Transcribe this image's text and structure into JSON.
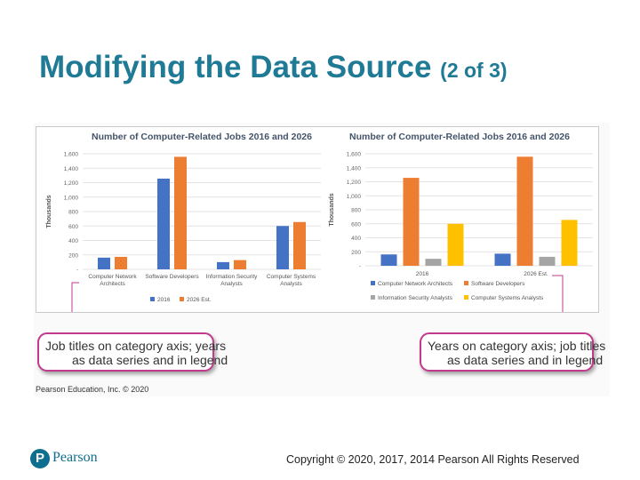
{
  "slide": {
    "title": "Modifying the Data Source",
    "title_suffix": "(2 of 3)",
    "credit": "Pearson Education, Inc. © 2020",
    "copyright": "Copyright © 2020, 2017, 2014 Pearson All Rights Reserved",
    "logo_letter": "P",
    "logo_text": "Pearson",
    "title_color": "#1f7a96",
    "callout_border_color": "#c23a8e"
  },
  "callouts": {
    "left": {
      "line1": "Job titles on category axis; years",
      "line2": "as data series and in legend"
    },
    "right": {
      "line1": "Years on category axis; job titles",
      "line2": "as data series and in legend"
    }
  },
  "chart_data": [
    {
      "type": "bar",
      "title": "Number of Computer-Related Jobs 2016 and 2026",
      "ylabel": "Thousands",
      "xlabel": "",
      "ylim": [
        0,
        1600
      ],
      "yticks": [
        {
          "value": 0,
          "label": "-"
        },
        {
          "value": 200,
          "label": "200"
        },
        {
          "value": 400,
          "label": "400"
        },
        {
          "value": 600,
          "label": "600"
        },
        {
          "value": 800,
          "label": "800"
        },
        {
          "value": 1000,
          "label": "1,000"
        },
        {
          "value": 1200,
          "label": "1,200"
        },
        {
          "value": 1400,
          "label": "1,400"
        },
        {
          "value": 1600,
          "label": "1,600"
        }
      ],
      "grid": true,
      "legend": "bottom",
      "categories": [
        [
          "Computer Network",
          "Architects"
        ],
        [
          "Software Developers"
        ],
        [
          "Information Security",
          "Analysts"
        ],
        [
          "Computer Systems",
          "Analysts"
        ]
      ],
      "series": [
        {
          "name": "2016",
          "color": "#4472c4",
          "values": [
            162,
            1256,
            100,
            600
          ]
        },
        {
          "name": "2026 Est.",
          "color": "#ed7d31",
          "values": [
            173,
            1558,
            128,
            655
          ]
        }
      ]
    },
    {
      "type": "bar",
      "title": "Number of Computer-Related Jobs 2016 and 2026",
      "ylabel": "Thousands",
      "xlabel": "",
      "ylim": [
        0,
        1600
      ],
      "yticks": [
        {
          "value": 0,
          "label": "-"
        },
        {
          "value": 200,
          "label": "200"
        },
        {
          "value": 400,
          "label": "400"
        },
        {
          "value": 600,
          "label": "600"
        },
        {
          "value": 800,
          "label": "800"
        },
        {
          "value": 1000,
          "label": "1,000"
        },
        {
          "value": 1200,
          "label": "1,200"
        },
        {
          "value": 1400,
          "label": "1,400"
        },
        {
          "value": 1600,
          "label": "1,600"
        }
      ],
      "grid": true,
      "legend": "bottom",
      "categories": [
        [
          "2016"
        ],
        [
          "2026 Est."
        ]
      ],
      "series": [
        {
          "name": "Computer Network Architects",
          "color": "#4472c4",
          "values": [
            162,
            173
          ]
        },
        {
          "name": "Software Developers",
          "color": "#ed7d31",
          "values": [
            1256,
            1558
          ]
        },
        {
          "name": "Information Security Analysts",
          "color": "#a5a5a5",
          "values": [
            100,
            128
          ]
        },
        {
          "name": "Computer Systems Analysts",
          "color": "#ffc000",
          "values": [
            600,
            655
          ]
        }
      ]
    }
  ]
}
